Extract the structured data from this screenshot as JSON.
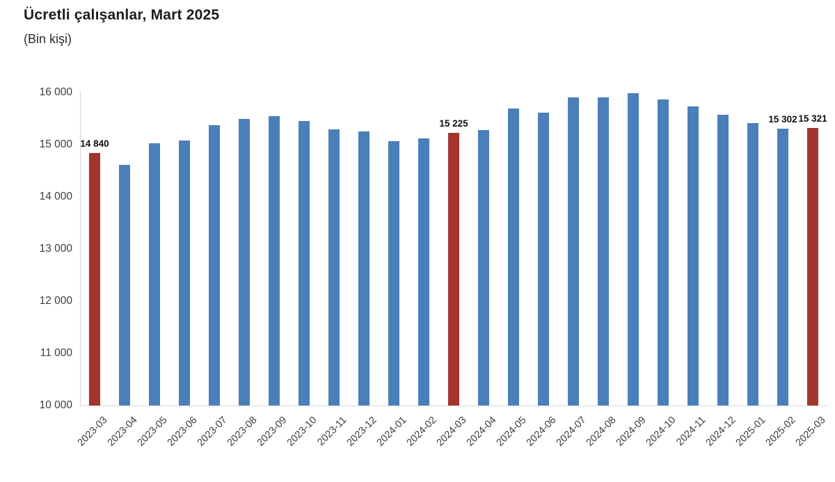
{
  "header": {
    "title": "Ücretli çalışanlar, Mart 2025",
    "subtitle": "(Bin kişi)"
  },
  "chart_data": {
    "type": "bar",
    "title": "Ücretli çalışanlar, Mart 2025",
    "subtitle": "(Bin kişi)",
    "xlabel": "",
    "ylabel": "",
    "grid": false,
    "legend": null,
    "ylim": [
      10000,
      16000
    ],
    "ytick_step": 1000,
    "ytick_labels": [
      "10 000",
      "11 000",
      "12 000",
      "13 000",
      "14 000",
      "15 000",
      "16 000"
    ],
    "categories": [
      "2023-03",
      "2023-04",
      "2023-05",
      "2023-06",
      "2023-07",
      "2023-08",
      "2023-09",
      "2023-10",
      "2023-11",
      "2023-12",
      "2024-01",
      "2024-02",
      "2024-03",
      "2024-04",
      "2024-05",
      "2024-06",
      "2024-07",
      "2024-08",
      "2024-09",
      "2024-10",
      "2024-11",
      "2024-12",
      "2025-01",
      "2025-02",
      "2025-03"
    ],
    "values": [
      14840,
      14610,
      15025,
      15085,
      15370,
      15490,
      15550,
      15460,
      15300,
      15250,
      15065,
      15125,
      15225,
      15285,
      15695,
      15610,
      15910,
      15905,
      15985,
      15870,
      15735,
      15580,
      15415,
      15302,
      15321
    ],
    "highlight_indices": [
      0,
      12,
      24
    ],
    "value_labels": [
      {
        "category": "2023-03",
        "text": "14 840"
      },
      {
        "category": "2024-03",
        "text": "15 225"
      },
      {
        "category": "2025-02",
        "text": "15 302"
      },
      {
        "category": "2025-03",
        "text": "15 321"
      }
    ],
    "colors": {
      "bar": "#4A7FBA",
      "highlight": "#A3352D",
      "axis_text": "#3d3d3f",
      "axis_line": "#d9d9d9",
      "value_label_text": "#0d0d0d"
    }
  }
}
